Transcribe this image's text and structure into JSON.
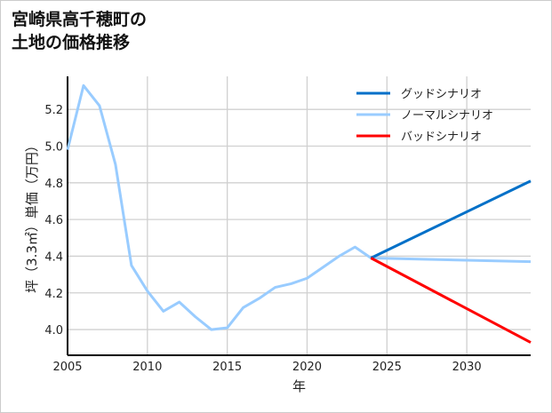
{
  "chart_data": {
    "type": "line",
    "title": "宮崎県高千穂町の\n土地の価格推移",
    "xlabel": "年",
    "ylabel": "坪（3.3㎡）単価（万円）",
    "xlim": [
      2005,
      2034
    ],
    "ylim": [
      3.86,
      5.38
    ],
    "xticks": [
      2005,
      2010,
      2015,
      2020,
      2025,
      2030
    ],
    "yticks": [
      4.0,
      4.2,
      4.4,
      4.6,
      4.8,
      5.0,
      5.2
    ],
    "grid": true,
    "legend_position": "top-right",
    "series": [
      {
        "name": "グッドシナリオ",
        "color": "#0070c8",
        "x": [
          2024,
          2034
        ],
        "y": [
          4.39,
          4.81
        ]
      },
      {
        "name": "ノーマルシナリオ",
        "color": "#99ccff",
        "x": [
          2005,
          2006,
          2007,
          2008,
          2009,
          2010,
          2011,
          2012,
          2013,
          2014,
          2015,
          2016,
          2017,
          2018,
          2019,
          2020,
          2021,
          2022,
          2023,
          2024,
          2034
        ],
        "y": [
          4.98,
          5.33,
          5.22,
          4.9,
          4.35,
          4.21,
          4.1,
          4.15,
          4.07,
          4.0,
          4.01,
          4.12,
          4.17,
          4.23,
          4.25,
          4.28,
          4.34,
          4.4,
          4.45,
          4.39,
          4.37
        ]
      },
      {
        "name": "バッドシナリオ",
        "color": "#ff0000",
        "x": [
          2024,
          2034
        ],
        "y": [
          4.39,
          3.93
        ]
      }
    ]
  }
}
